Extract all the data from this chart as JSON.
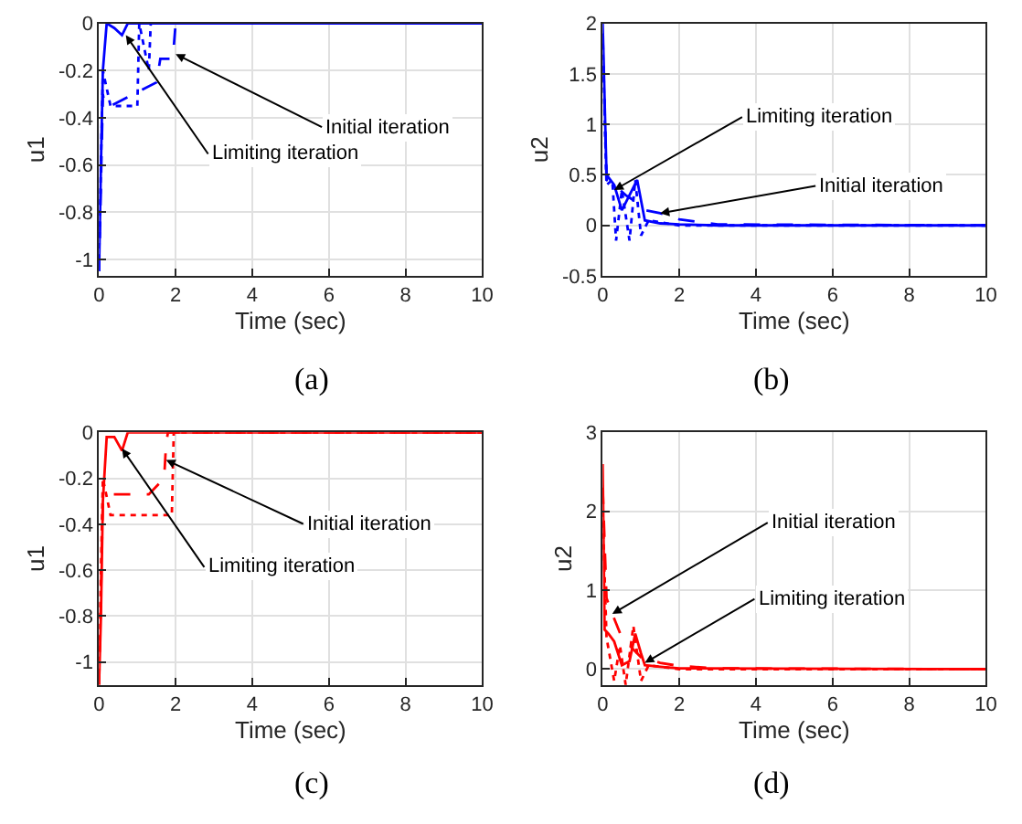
{
  "chart_data": [
    {
      "type": "line",
      "xlabel": "Time (sec)",
      "ylabel": "u1",
      "xlim": [
        0,
        10
      ],
      "xticks": [
        0,
        2,
        4,
        6,
        8,
        10
      ],
      "ylim": [
        -1.07,
        0
      ],
      "yticks": [
        -1,
        -0.8,
        -0.6,
        -0.4,
        -0.2,
        0
      ],
      "grid": true,
      "marker": "none",
      "series": [
        {
          "color": "#0000ff",
          "line_style": "dotted",
          "x": [
            0,
            0.1,
            0.3,
            1.0,
            1.05,
            1.3,
            1.35,
            10
          ],
          "values": [
            -1.0,
            -0.2,
            -0.35,
            -0.35,
            0,
            -0.2,
            0,
            0
          ]
        },
        {
          "color": "#0000ff",
          "line_style": "dashed",
          "x": [
            0,
            0.1,
            0.15,
            0.3,
            1.5,
            1.6,
            1.9,
            1.95,
            2.0,
            10
          ],
          "values": [
            -1.05,
            -0.3,
            -0.35,
            -0.35,
            -0.25,
            -0.15,
            -0.15,
            -0.1,
            0,
            0
          ]
        },
        {
          "color": "#0000ff",
          "line_style": "solid",
          "x": [
            0,
            0.05,
            0.1,
            0.2,
            0.4,
            0.6,
            0.75,
            10
          ],
          "values": [
            -1.05,
            -0.6,
            -0.2,
            0,
            -0.02,
            -0.05,
            0,
            0
          ]
        }
      ],
      "annotations": [
        {
          "text": "Initial iteration",
          "x": 2.0,
          "y": -0.13
        },
        {
          "text": "Limiting iteration",
          "x": 0.7,
          "y": -0.05
        },
        "(a)"
      ]
    },
    {
      "type": "line",
      "xlabel": "Time (sec)",
      "ylabel": "u2",
      "xlim": [
        0,
        10
      ],
      "xticks": [
        0,
        2,
        4,
        6,
        8,
        10
      ],
      "ylim": [
        -0.5,
        2
      ],
      "yticks": [
        -0.5,
        0,
        0.5,
        1,
        1.5,
        2
      ],
      "grid": true,
      "marker": "none",
      "series": [
        {
          "color": "#0000ff",
          "line_style": "dotted",
          "x": [
            0,
            0.1,
            0.25,
            0.35,
            0.5,
            0.7,
            0.85,
            1.0,
            1.2,
            2,
            10
          ],
          "values": [
            1.8,
            0.4,
            0.45,
            -0.15,
            0.35,
            -0.15,
            0.45,
            -0.1,
            0.05,
            0,
            0
          ]
        },
        {
          "color": "#0000ff",
          "line_style": "dashed",
          "x": [
            0,
            0.1,
            0.3,
            0.6,
            1.0,
            1.1,
            1.5,
            2,
            3,
            10
          ],
          "values": [
            1.9,
            0.45,
            0.4,
            0.3,
            0.2,
            0.15,
            0.12,
            0.06,
            0.01,
            0
          ]
        },
        {
          "color": "#0000ff",
          "line_style": "solid",
          "x": [
            0,
            0.1,
            0.3,
            0.5,
            0.7,
            0.9,
            1.1,
            1.5,
            2,
            3,
            10
          ],
          "values": [
            2.0,
            0.5,
            0.4,
            0.15,
            0.3,
            0.45,
            0.05,
            0.02,
            0.01,
            0,
            0
          ]
        }
      ],
      "annotations": [
        {
          "text": "Limiting iteration",
          "x": 0.3,
          "y": 0.35
        },
        {
          "text": "Initial iteration",
          "x": 1.5,
          "y": 0.12
        },
        "(b)"
      ]
    },
    {
      "type": "line",
      "xlabel": "Time (sec)",
      "ylabel": "u1",
      "xlim": [
        0,
        10
      ],
      "xticks": [
        0,
        2,
        4,
        6,
        8,
        10
      ],
      "ylim": [
        -1.1,
        0
      ],
      "yticks": [
        -1,
        -0.8,
        -0.6,
        -0.4,
        -0.2,
        0
      ],
      "grid": true,
      "marker": "none",
      "series": [
        {
          "color": "#ff0000",
          "line_style": "dotted",
          "x": [
            0,
            0.1,
            0.3,
            1.9,
            1.95,
            10
          ],
          "values": [
            -1.0,
            -0.2,
            -0.36,
            -0.36,
            0,
            0
          ]
        },
        {
          "color": "#ff0000",
          "line_style": "dashed",
          "x": [
            0,
            0.1,
            0.3,
            1.3,
            1.7,
            1.75,
            1.8,
            10
          ],
          "values": [
            -1.1,
            -0.3,
            -0.27,
            -0.27,
            -0.2,
            -0.05,
            0,
            0
          ]
        },
        {
          "color": "#ff0000",
          "line_style": "solid",
          "x": [
            0,
            0.05,
            0.1,
            0.2,
            0.4,
            0.6,
            0.75,
            10
          ],
          "values": [
            -1.1,
            -0.8,
            -0.3,
            -0.02,
            -0.02,
            -0.08,
            0,
            0
          ]
        }
      ],
      "annotations": [
        {
          "text": "Initial iteration",
          "x": 1.75,
          "y": -0.12
        },
        {
          "text": "Limiting iteration",
          "x": 0.6,
          "y": -0.07
        },
        "(c)"
      ]
    },
    {
      "type": "line",
      "xlabel": "Time (sec)",
      "ylabel": "u2",
      "xlim": [
        0,
        10
      ],
      "xticks": [
        0,
        2,
        4,
        6,
        8,
        10
      ],
      "ylim": [
        -0.2,
        3
      ],
      "yticks": [
        0,
        1,
        2,
        3
      ],
      "grid": true,
      "marker": "none",
      "series": [
        {
          "color": "#ff0000",
          "line_style": "dotted",
          "x": [
            0,
            0.1,
            0.3,
            0.45,
            0.6,
            0.8,
            1.0,
            1.2,
            2,
            10
          ],
          "values": [
            2.0,
            0.4,
            -0.15,
            0.3,
            -0.2,
            0.55,
            -0.15,
            0.05,
            0,
            0
          ]
        },
        {
          "color": "#ff0000",
          "line_style": "dashed",
          "x": [
            0,
            0.1,
            0.25,
            0.5,
            1.0,
            1.5,
            2,
            3,
            10
          ],
          "values": [
            2.3,
            0.9,
            0.7,
            0.4,
            0.15,
            0.08,
            0.04,
            0.01,
            0
          ]
        },
        {
          "color": "#ff0000",
          "line_style": "solid",
          "x": [
            0,
            0.05,
            0.15,
            0.3,
            0.5,
            0.7,
            0.85,
            1.0,
            1.1,
            1.5,
            2,
            10
          ],
          "values": [
            2.6,
            0.5,
            0.45,
            0.35,
            0.05,
            0.1,
            0.45,
            0.2,
            0.05,
            0.03,
            0.01,
            0
          ]
        }
      ],
      "annotations": [
        {
          "text": "Initial iteration",
          "x": 0.25,
          "y": 0.7
        },
        {
          "text": "Limiting iteration",
          "x": 1.1,
          "y": 0.08
        },
        "(d)"
      ]
    }
  ]
}
